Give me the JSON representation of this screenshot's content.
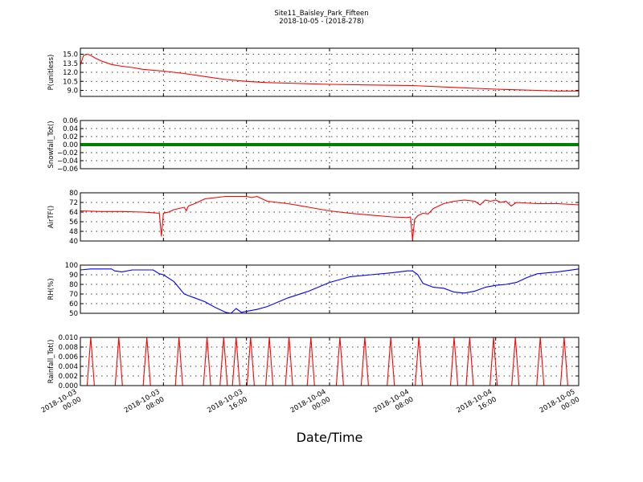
{
  "figure": {
    "title": "Site11_Baisley_Park_Fifteen",
    "subtitle": "2018-10-05 - (2018-278)",
    "xlabel": "Date/Time"
  },
  "chart_data": [
    {
      "type": "line",
      "ylabel": "P(unitless)",
      "color": "#ff0000",
      "ylim": [
        8.0,
        16.0
      ],
      "yticks": [
        "15.0",
        "13.5",
        "12.0",
        "10.5",
        "9.0"
      ],
      "ytick_values": [
        15.0,
        13.5,
        12.0,
        10.5,
        9.0
      ],
      "x_hours": [
        0,
        0.3,
        0.7,
        1,
        1.5,
        2,
        3,
        4,
        5,
        6,
        8,
        10,
        12,
        14,
        16,
        18,
        20,
        24,
        28,
        32,
        36,
        40,
        44,
        46,
        48
      ],
      "values": [
        13.2,
        14.8,
        15.0,
        14.8,
        14.3,
        13.9,
        13.3,
        13.0,
        12.8,
        12.5,
        12.2,
        11.8,
        11.3,
        10.8,
        10.5,
        10.3,
        10.2,
        10.0,
        9.9,
        9.8,
        9.5,
        9.2,
        9.0,
        8.9,
        8.9
      ]
    },
    {
      "type": "line",
      "ylabel": "Snowfall_Tot()",
      "color": "#008000",
      "ylim": [
        -0.06,
        0.06
      ],
      "yticks": [
        "0.06",
        "0.04",
        "0.02",
        "0.00",
        "−0.02",
        "−0.04",
        "−0.06"
      ],
      "ytick_values": [
        0.06,
        0.04,
        0.02,
        0.0,
        -0.02,
        -0.04,
        -0.06
      ],
      "x_hours": [
        0,
        48
      ],
      "values": [
        0,
        0
      ]
    },
    {
      "type": "line",
      "ylabel": "AirTF()",
      "color": "#ff0000",
      "ylim": [
        40,
        80
      ],
      "yticks": [
        "80",
        "72",
        "64",
        "56",
        "48",
        "40"
      ],
      "ytick_values": [
        80,
        72,
        64,
        56,
        48,
        40
      ],
      "x_hours": [
        0,
        2,
        4,
        6,
        7,
        7.6,
        7.8,
        8.0,
        8.2,
        8.5,
        9,
        10,
        10.2,
        10.4,
        11,
        12,
        12.5,
        13,
        14,
        15,
        16,
        16.5,
        17,
        17.5,
        18,
        20,
        22,
        24,
        26,
        28,
        30,
        31.5,
        31.8,
        32.0,
        32.2,
        32.5,
        33,
        33.5,
        34,
        35,
        36,
        37,
        38,
        38.5,
        39,
        39.5,
        40,
        40.5,
        41,
        41.5,
        42,
        44,
        46,
        48
      ],
      "values": [
        65,
        64.5,
        64.5,
        64,
        63.5,
        63,
        44,
        63,
        63.5,
        64,
        66,
        68,
        65,
        69,
        71,
        75,
        75.5,
        76,
        77,
        77,
        77,
        76,
        77,
        75,
        73,
        71,
        68,
        65,
        63,
        61.5,
        60,
        59.5,
        60,
        41,
        58,
        61,
        63,
        62.5,
        67,
        71,
        73,
        74,
        73,
        70,
        74,
        73,
        74,
        72,
        73,
        69,
        72,
        71,
        71,
        70
      ]
    },
    {
      "type": "line",
      "ylabel": "RH(%)",
      "color": "#0000ff",
      "ylim": [
        50,
        100
      ],
      "yticks": [
        "100",
        "90",
        "80",
        "70",
        "60",
        "50"
      ],
      "ytick_values": [
        100,
        90,
        80,
        70,
        60,
        50
      ],
      "x_hours": [
        0,
        1,
        2,
        3,
        3.3,
        4,
        5,
        6,
        7,
        7.6,
        8,
        9,
        10,
        11,
        12,
        13,
        14,
        14.5,
        15,
        15.5,
        16,
        17,
        18,
        20,
        22,
        24,
        26,
        28,
        30,
        31.5,
        32,
        32.5,
        33,
        34,
        35,
        36,
        37,
        38,
        39,
        40,
        41,
        42,
        43,
        44,
        46,
        48
      ],
      "values": [
        95,
        96,
        96,
        96,
        94,
        93,
        95,
        95,
        95,
        91,
        90,
        83,
        70,
        66,
        62,
        56,
        51,
        50,
        55,
        51,
        52,
        54,
        57,
        66,
        73,
        82,
        88,
        90,
        92,
        94,
        94,
        90,
        81,
        77,
        76,
        72,
        71,
        73,
        77,
        79,
        80,
        82,
        87,
        91,
        93,
        96
      ]
    },
    {
      "type": "line",
      "ylabel": "Rainfall_Tot()",
      "color": "#ff0000",
      "ylim": [
        0,
        0.01
      ],
      "yticks": [
        "0.010",
        "0.008",
        "0.006",
        "0.004",
        "0.002",
        "0.000"
      ],
      "ytick_values": [
        0.01,
        0.008,
        0.006,
        0.004,
        0.002,
        0.0
      ],
      "spike_hours": [
        1,
        3.7,
        6.4,
        9.5,
        12.2,
        13.8,
        15,
        16.4,
        18.2,
        20.1,
        22.2,
        25,
        27.4,
        29.9,
        32.6,
        36,
        37.5,
        39.8,
        41.9,
        44.3,
        46.6
      ],
      "spike_value": 0.01
    }
  ],
  "x_axis": {
    "range_hours": [
      0,
      48
    ],
    "ticks": [
      {
        "hour": 0,
        "line1": "2018-10-03",
        "line2": "00:00"
      },
      {
        "hour": 8,
        "line1": "2018-10-03",
        "line2": "08:00"
      },
      {
        "hour": 16,
        "line1": "2018-10-03",
        "line2": "16:00"
      },
      {
        "hour": 24,
        "line1": "2018-10-04",
        "line2": "00:00"
      },
      {
        "hour": 32,
        "line1": "2018-10-04",
        "line2": "08:00"
      },
      {
        "hour": 40,
        "line1": "2018-10-04",
        "line2": "16:00"
      },
      {
        "hour": 48,
        "line1": "2018-10-05",
        "line2": "00:00"
      }
    ]
  }
}
